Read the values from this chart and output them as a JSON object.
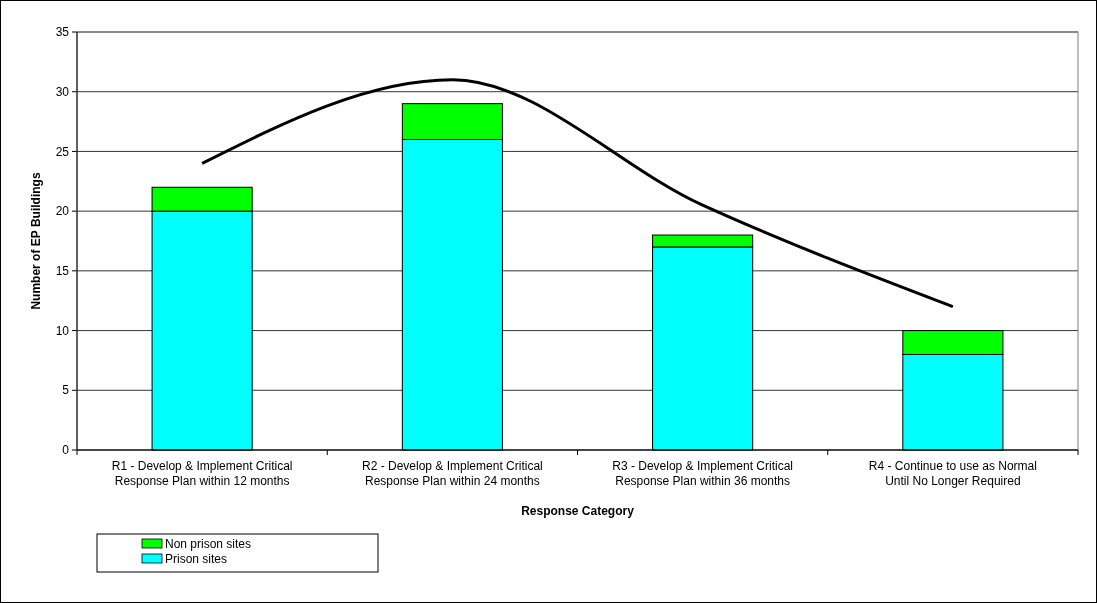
{
  "chart_data": {
    "type": "bar",
    "stacked": true,
    "xlabel": "Response Category",
    "ylabel": "Number of EP Buildings",
    "categories": [
      "R1 - Develop & Implement Critical Response Plan within 12 months",
      "R2 - Develop & Implement Critical Response Plan within 24 months",
      "R3 - Develop & Implement Critical Response Plan within 36 months",
      "R4 - Continue to use as Normal Until No Longer Required"
    ],
    "series": [
      {
        "name": "Prison sites",
        "color": "#00ffff",
        "values": [
          20,
          26,
          17,
          8
        ]
      },
      {
        "name": "Non prison sites",
        "color": "#00ff00",
        "values": [
          2,
          3,
          1,
          2
        ]
      },
      {
        "type": "line",
        "color": "#000000",
        "values": [
          24,
          31,
          20.5,
          12
        ]
      }
    ],
    "ylim": [
      0,
      35
    ],
    "yticks": [
      0,
      5,
      10,
      15,
      20,
      25,
      30,
      35
    ],
    "grid": "y",
    "legend": "bottom left"
  }
}
